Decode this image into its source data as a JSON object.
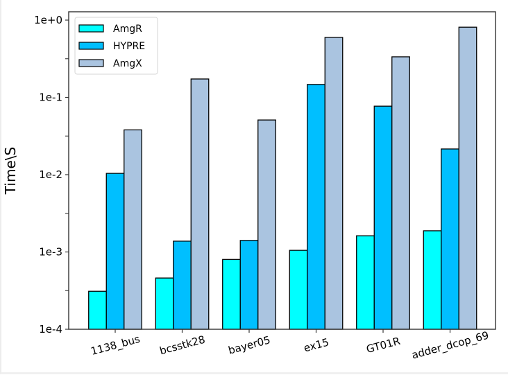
{
  "chart_data": {
    "type": "bar",
    "title": "",
    "xlabel": "",
    "ylabel": "Time\\S",
    "yscale": "log",
    "ylim": [
      0.0001,
      1.28
    ],
    "yticks": [
      {
        "value": 1,
        "label": "1e+0"
      },
      {
        "value": 0.1,
        "label": "1e-1"
      },
      {
        "value": 0.01,
        "label": "1e-2"
      },
      {
        "value": 0.001,
        "label": "1e-3"
      },
      {
        "value": 0.0001,
        "label": "1e-4"
      }
    ],
    "minor_yticks": [
      0.3162,
      0.03162,
      0.003162,
      0.0003162
    ],
    "categories": [
      "1138_bus",
      "bcsstk28",
      "bayer05",
      "ex15",
      "GT01R",
      "adder_dcop_69"
    ],
    "xtick_rotation_deg": 15,
    "grid": false,
    "legend": {
      "position": "top-left"
    },
    "series": [
      {
        "name": "AmgR",
        "color": "#00ffff",
        "values": [
          0.00031,
          0.00046,
          0.0008,
          0.00105,
          0.00162,
          0.00188
        ]
      },
      {
        "name": "HYPRE",
        "color": "#00bfff",
        "values": [
          0.0104,
          0.00138,
          0.00141,
          0.147,
          0.077,
          0.0215
        ]
      },
      {
        "name": "AmgX",
        "color": "#aac4e0",
        "values": [
          0.038,
          0.173,
          0.051,
          0.597,
          0.335,
          0.81
        ]
      }
    ],
    "edge_color": "#000000"
  }
}
